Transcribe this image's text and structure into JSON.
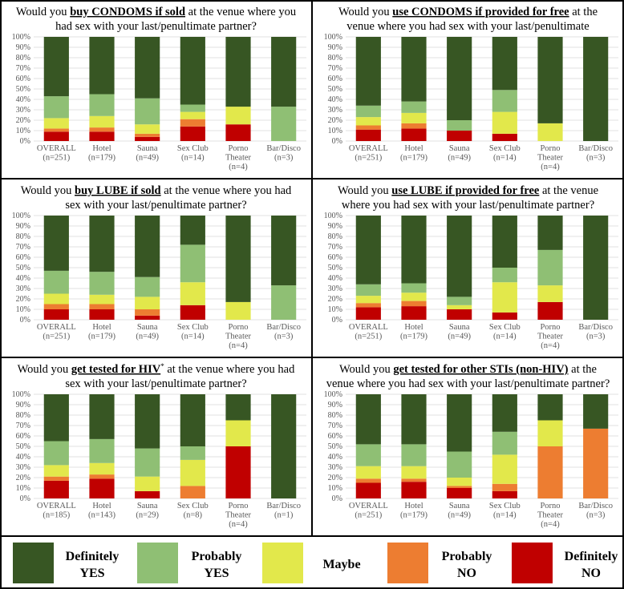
{
  "colors": {
    "definitely_yes": "#375623",
    "probably_yes": "#8FBF74",
    "maybe": "#E2E84B",
    "probably_no": "#ED7D31",
    "definitely_no": "#C00000"
  },
  "legend": [
    {
      "key": "definitely_yes",
      "line1": "Definitely",
      "line2": "YES"
    },
    {
      "key": "probably_yes",
      "line1": "Probably",
      "line2": "YES"
    },
    {
      "key": "maybe",
      "line1": "Maybe",
      "line2": ""
    },
    {
      "key": "probably_no",
      "line1": "Probably",
      "line2": "NO"
    },
    {
      "key": "definitely_no",
      "line1": "Definitely",
      "line2": "NO"
    }
  ],
  "chart_data": [
    {
      "type": "bar",
      "stacked": true,
      "title_parts": [
        {
          "t": "Would you ",
          "u": false
        },
        {
          "t": "buy CONDOMS if sold",
          "u": true
        },
        {
          "t": " at the venue where you",
          "u": false
        },
        {
          "t": "\n",
          "u": false
        },
        {
          "t": "had sex with your last/penultimate partner?",
          "u": false
        }
      ],
      "categories": [
        "OVERALL|(n=251)",
        "Hotel|(n=179)",
        "Sauna|(n=49)",
        "Sex Club|(n=14)",
        "Porno|Theater|(n=4)",
        "Bar/Disco|(n=3)"
      ],
      "yticks": [
        "0%",
        "10%",
        "20%",
        "30%",
        "40%",
        "50%",
        "60%",
        "70%",
        "80%",
        "90%",
        "100%"
      ],
      "ylim": [
        0,
        100
      ],
      "series": [
        {
          "name": "Definitely NO",
          "key": "definitely_no",
          "values": [
            9,
            9,
            4,
            14,
            16,
            0
          ]
        },
        {
          "name": "Probably NO",
          "key": "probably_no",
          "values": [
            3,
            4,
            3,
            7,
            0,
            0
          ]
        },
        {
          "name": "Maybe",
          "key": "maybe",
          "values": [
            10,
            11,
            9,
            7,
            17,
            0
          ]
        },
        {
          "name": "Probably YES",
          "key": "probably_yes",
          "values": [
            21,
            21,
            25,
            7,
            0,
            33
          ]
        },
        {
          "name": "Definitely YES",
          "key": "definitely_yes",
          "values": [
            57,
            55,
            59,
            65,
            67,
            67
          ]
        }
      ]
    },
    {
      "type": "bar",
      "stacked": true,
      "title_parts": [
        {
          "t": "Would you ",
          "u": false
        },
        {
          "t": "use CONDOMS if provided for free",
          "u": true
        },
        {
          "t": " at the",
          "u": false
        },
        {
          "t": "\n",
          "u": false
        },
        {
          "t": "venue where you had sex with your last/penultimate",
          "u": false
        }
      ],
      "categories": [
        "OVERALL|(n=251)",
        "Hotel|(n=179)",
        "Sauna|(n=49)",
        "Sex Club|(n=14)",
        "Porno|Theater|(n=4)",
        "Bar/Disco|(n=3)"
      ],
      "yticks": [
        "0%",
        "10%",
        "20%",
        "30%",
        "40%",
        "50%",
        "60%",
        "70%",
        "80%",
        "90%",
        "100%"
      ],
      "ylim": [
        0,
        100
      ],
      "series": [
        {
          "name": "Definitely NO",
          "key": "definitely_no",
          "values": [
            11,
            12,
            10,
            7,
            0,
            0
          ]
        },
        {
          "name": "Probably NO",
          "key": "probably_no",
          "values": [
            4,
            5,
            0,
            0,
            0,
            0
          ]
        },
        {
          "name": "Maybe",
          "key": "maybe",
          "values": [
            8,
            10,
            0,
            21,
            17,
            0
          ]
        },
        {
          "name": "Probably YES",
          "key": "probably_yes",
          "values": [
            11,
            11,
            10,
            21,
            0,
            0
          ]
        },
        {
          "name": "Definitely YES",
          "key": "definitely_yes",
          "values": [
            66,
            62,
            80,
            51,
            83,
            100
          ]
        }
      ]
    },
    {
      "type": "bar",
      "stacked": true,
      "title_parts": [
        {
          "t": "Would you ",
          "u": false
        },
        {
          "t": "buy LUBE if sold",
          "u": true
        },
        {
          "t": " at the venue where you had",
          "u": false
        },
        {
          "t": "\n",
          "u": false
        },
        {
          "t": "sex with your last/penultimate partner?",
          "u": false
        }
      ],
      "categories": [
        "OVERALL|(n=251)",
        "Hotel|(n=179)",
        "Sauna|(n=49)",
        "Sex Club|(n=14)",
        "Porno|Theater|(n=4)",
        "Bar/Disco|(n=3)"
      ],
      "yticks": [
        "0%",
        "10%",
        "20%",
        "30%",
        "40%",
        "50%",
        "60%",
        "70%",
        "80%",
        "90%",
        "100%"
      ],
      "ylim": [
        0,
        100
      ],
      "series": [
        {
          "name": "Definitely NO",
          "key": "definitely_no",
          "values": [
            10,
            10,
            4,
            14,
            0,
            0
          ]
        },
        {
          "name": "Probably NO",
          "key": "probably_no",
          "values": [
            5,
            5,
            6,
            0,
            0,
            0
          ]
        },
        {
          "name": "Maybe",
          "key": "maybe",
          "values": [
            10,
            9,
            12,
            22,
            17,
            0
          ]
        },
        {
          "name": "Probably YES",
          "key": "probably_yes",
          "values": [
            22,
            22,
            19,
            36,
            0,
            33
          ]
        },
        {
          "name": "Definitely YES",
          "key": "definitely_yes",
          "values": [
            53,
            54,
            59,
            28,
            83,
            67
          ]
        }
      ]
    },
    {
      "type": "bar",
      "stacked": true,
      "title_parts": [
        {
          "t": "Would you ",
          "u": false
        },
        {
          "t": "use LUBE if provided for free",
          "u": true
        },
        {
          "t": " at the venue",
          "u": false
        },
        {
          "t": "\n",
          "u": false
        },
        {
          "t": "where you had sex with your last/penultimate partner?",
          "u": false
        }
      ],
      "categories": [
        "OVERALL|(n=251)",
        "Hotel|(n=179)",
        "Sauna|(n=49)",
        "Sex Club|(n=14)",
        "Porno|Theater|(n=4)",
        "Bar/Disco|(n=3)"
      ],
      "yticks": [
        "0%",
        "10%",
        "20%",
        "30%",
        "40%",
        "50%",
        "60%",
        "70%",
        "80%",
        "90%",
        "100%"
      ],
      "ylim": [
        0,
        100
      ],
      "series": [
        {
          "name": "Definitely NO",
          "key": "definitely_no",
          "values": [
            12,
            13,
            10,
            7,
            17,
            0
          ]
        },
        {
          "name": "Probably NO",
          "key": "probably_no",
          "values": [
            4,
            5,
            0,
            0,
            0,
            0
          ]
        },
        {
          "name": "Maybe",
          "key": "maybe",
          "values": [
            7,
            8,
            4,
            29,
            16,
            0
          ]
        },
        {
          "name": "Probably YES",
          "key": "probably_yes",
          "values": [
            11,
            9,
            8,
            14,
            34,
            0
          ]
        },
        {
          "name": "Definitely YES",
          "key": "definitely_yes",
          "values": [
            66,
            65,
            78,
            50,
            33,
            100
          ]
        }
      ]
    },
    {
      "type": "bar",
      "stacked": true,
      "title_parts": [
        {
          "t": "Would you ",
          "u": false
        },
        {
          "t": "get tested for HIV",
          "u": true
        },
        {
          "t": "*",
          "u": false,
          "sup": true
        },
        {
          "t": " at the venue where you had",
          "u": false
        },
        {
          "t": "\n",
          "u": false
        },
        {
          "t": "sex with your last/penultimate partner?",
          "u": false
        }
      ],
      "categories": [
        "OVERALL|(n=185)",
        "Hotel|(n=143)",
        "Sauna|(n=29)",
        "Sex Club|(n=8)",
        "Porno|Theater|(n=4)",
        "Bar/Disco|(n=1)"
      ],
      "yticks": [
        "0%",
        "10%",
        "20%",
        "30%",
        "40%",
        "50%",
        "60%",
        "70%",
        "80%",
        "90%",
        "100%"
      ],
      "ylim": [
        0,
        100
      ],
      "series": [
        {
          "name": "Definitely NO",
          "key": "definitely_no",
          "values": [
            17,
            19,
            7,
            0,
            50,
            0
          ]
        },
        {
          "name": "Probably NO",
          "key": "probably_no",
          "values": [
            4,
            4,
            0,
            12,
            0,
            0
          ]
        },
        {
          "name": "Maybe",
          "key": "maybe",
          "values": [
            11,
            11,
            14,
            25,
            25,
            0
          ]
        },
        {
          "name": "Probably YES",
          "key": "probably_yes",
          "values": [
            23,
            23,
            27,
            13,
            0,
            0
          ]
        },
        {
          "name": "Definitely YES",
          "key": "definitely_yes",
          "values": [
            45,
            43,
            52,
            50,
            25,
            100
          ]
        }
      ]
    },
    {
      "type": "bar",
      "stacked": true,
      "title_parts": [
        {
          "t": "Would you ",
          "u": false
        },
        {
          "t": "get tested for other STIs (non-HIV)",
          "u": true
        },
        {
          "t": " at the",
          "u": false
        },
        {
          "t": "\n",
          "u": false
        },
        {
          "t": "venue where you had sex with your last/penultimate partner?",
          "u": false
        }
      ],
      "categories": [
        "OVERALL|(n=251)",
        "Hotel|(n=179)",
        "Sauna|(n=49)",
        "Sex Club|(n=14)",
        "Porno|Theater|(n=4)",
        "Bar/Disco|(n=3)"
      ],
      "yticks": [
        "0%",
        "10%",
        "20%",
        "30%",
        "40%",
        "50%",
        "60%",
        "70%",
        "80%",
        "90%",
        "100%"
      ],
      "ylim": [
        0,
        100
      ],
      "series": [
        {
          "name": "Definitely NO",
          "key": "definitely_no",
          "values": [
            15,
            16,
            10,
            7,
            0,
            0
          ]
        },
        {
          "name": "Probably NO",
          "key": "probably_no",
          "values": [
            4,
            3,
            2,
            7,
            50,
            67
          ]
        },
        {
          "name": "Maybe",
          "key": "maybe",
          "values": [
            12,
            12,
            8,
            28,
            25,
            0
          ]
        },
        {
          "name": "Probably YES",
          "key": "probably_yes",
          "values": [
            21,
            21,
            25,
            22,
            0,
            0
          ]
        },
        {
          "name": "Definitely YES",
          "key": "definitely_yes",
          "values": [
            48,
            48,
            55,
            36,
            25,
            33
          ]
        }
      ]
    }
  ]
}
